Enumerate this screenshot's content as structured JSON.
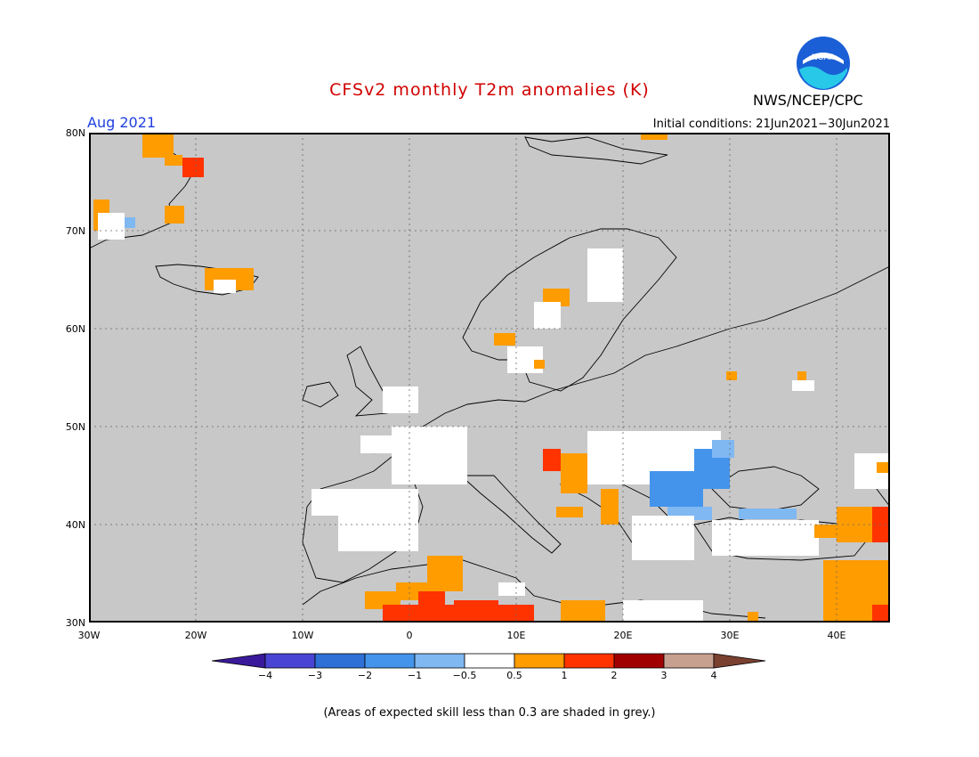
{
  "title": "CFSv2 monthly T2m anomalies (K)",
  "valid_month": "Aug 2021",
  "agency": "NWS/NCEP/CPC",
  "logo_text": "NOAA",
  "initial_conditions": "Initial conditions: 21Jun2021−30Jun2021",
  "lat_labels": [
    "80N",
    "70N",
    "60N",
    "50N",
    "40N",
    "30N"
  ],
  "lon_labels": [
    "30W",
    "20W",
    "10W",
    "0",
    "10E",
    "20E",
    "30E",
    "40E"
  ],
  "colorbar": {
    "labels": [
      "−4",
      "−3",
      "−2",
      "−1",
      "−0.5",
      "0.5",
      "1",
      "2",
      "3",
      "4"
    ],
    "colors": [
      "#3a1a9a",
      "#4a44d4",
      "#2f70d6",
      "#4494ec",
      "#80b8f2",
      "#ffffff",
      "#ff9c00",
      "#ff3300",
      "#a00000",
      "#c8a090",
      "#7a4030"
    ]
  },
  "note": "(Areas of expected skill less than 0.3 are shaded in grey.)",
  "colors": {
    "skill_grey": "#c8c8c8",
    "title_red": "#d00000",
    "month_blue": "#1f3fe0"
  }
}
